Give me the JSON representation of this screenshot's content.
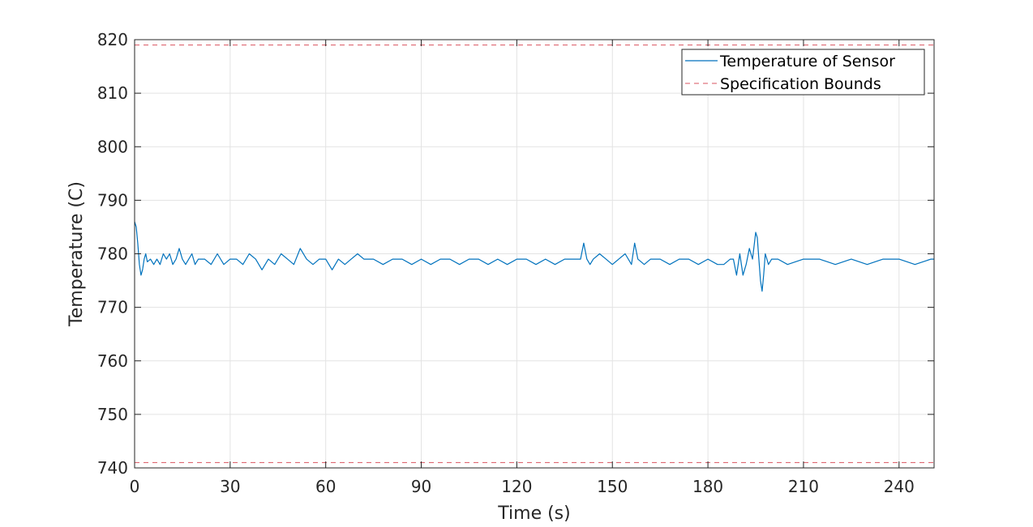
{
  "chart_data": {
    "type": "line",
    "title": "",
    "xlabel": "Time (s)",
    "ylabel": "Temperature (C)",
    "xlim": [
      0,
      251
    ],
    "ylim": [
      740,
      820
    ],
    "xticks": [
      0,
      30,
      60,
      90,
      120,
      150,
      180,
      210,
      240
    ],
    "yticks": [
      740,
      750,
      760,
      770,
      780,
      790,
      800,
      810,
      820
    ],
    "grid": true,
    "legend_position": "top-right",
    "series": [
      {
        "name": "Temperature of Sensor",
        "color": "#0072BD",
        "style": "solid",
        "x": [
          0,
          0.5,
          1,
          1.5,
          2,
          2.5,
          3,
          3.5,
          4,
          5,
          6,
          7,
          8,
          9,
          10,
          11,
          12,
          13,
          14,
          15,
          16,
          17,
          18,
          19,
          20,
          22,
          24,
          26,
          28,
          30,
          32,
          34,
          36,
          38,
          40,
          42,
          44,
          46,
          48,
          50,
          52,
          54,
          56,
          58,
          60,
          62,
          64,
          66,
          68,
          70,
          72,
          75,
          78,
          81,
          84,
          87,
          90,
          93,
          96,
          99,
          102,
          105,
          108,
          111,
          114,
          117,
          120,
          123,
          126,
          129,
          132,
          135,
          138,
          140,
          141,
          142,
          143,
          144,
          146,
          148,
          150,
          152,
          154,
          156,
          157,
          158,
          160,
          162,
          165,
          168,
          171,
          174,
          177,
          180,
          183,
          185,
          187,
          188,
          189,
          190,
          191,
          192,
          193,
          194,
          195,
          195.5,
          196,
          196.5,
          197,
          197.5,
          198,
          198.5,
          199,
          200,
          202,
          205,
          210,
          215,
          220,
          225,
          230,
          235,
          240,
          245,
          250,
          251
        ],
        "y": [
          786,
          785,
          782,
          778,
          776,
          777,
          779,
          780,
          778.5,
          779,
          778,
          779,
          778,
          780,
          779,
          780,
          778,
          779,
          781,
          779,
          778,
          779,
          780,
          778,
          779,
          779,
          778,
          780,
          778,
          779,
          779,
          778,
          780,
          779,
          777,
          779,
          778,
          780,
          779,
          778,
          781,
          779,
          778,
          779,
          779,
          777,
          779,
          778,
          779,
          780,
          779,
          779,
          778,
          779,
          779,
          778,
          779,
          778,
          779,
          779,
          778,
          779,
          779,
          778,
          779,
          778,
          779,
          779,
          778,
          779,
          778,
          779,
          779,
          779,
          782,
          779,
          778,
          779,
          780,
          779,
          778,
          779,
          780,
          778,
          782,
          779,
          778,
          779,
          779,
          778,
          779,
          779,
          778,
          779,
          778,
          778,
          779,
          779,
          776,
          780,
          776,
          778,
          781,
          779,
          784,
          783,
          779,
          775,
          773,
          776,
          780,
          779,
          778,
          779,
          779,
          778,
          779,
          779,
          778,
          779,
          778,
          779,
          779,
          778,
          779,
          779
        ]
      },
      {
        "name": "Specification Bounds",
        "color": "#D9535F",
        "style": "dashed",
        "lines": [
          819,
          741
        ]
      }
    ]
  }
}
